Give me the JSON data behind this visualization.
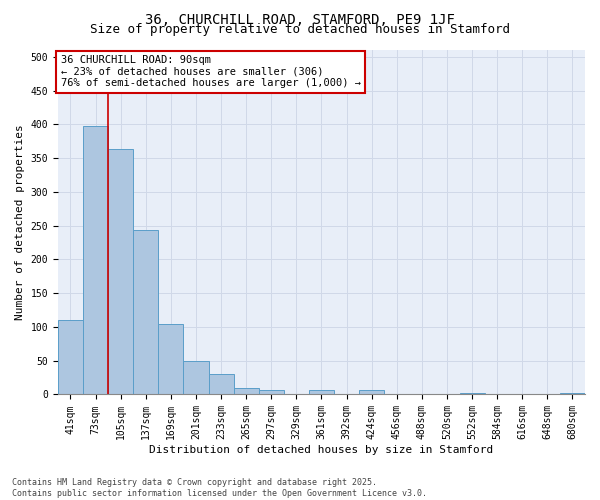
{
  "title_line1": "36, CHURCHILL ROAD, STAMFORD, PE9 1JF",
  "title_line2": "Size of property relative to detached houses in Stamford",
  "xlabel": "Distribution of detached houses by size in Stamford",
  "ylabel": "Number of detached properties",
  "categories": [
    "41sqm",
    "73sqm",
    "105sqm",
    "137sqm",
    "169sqm",
    "201sqm",
    "233sqm",
    "265sqm",
    "297sqm",
    "329sqm",
    "361sqm",
    "392sqm",
    "424sqm",
    "456sqm",
    "488sqm",
    "520sqm",
    "552sqm",
    "584sqm",
    "616sqm",
    "648sqm",
    "680sqm"
  ],
  "values": [
    110,
    397,
    363,
    243,
    105,
    49,
    30,
    10,
    7,
    0,
    6,
    0,
    7,
    0,
    0,
    0,
    2,
    0,
    1,
    0,
    2
  ],
  "bar_color": "#adc6e0",
  "bar_edge_color": "#5a9ec9",
  "vline_x": 1.5,
  "vline_color": "#cc0000",
  "annotation_text": "36 CHURCHILL ROAD: 90sqm\n← 23% of detached houses are smaller (306)\n76% of semi-detached houses are larger (1,000) →",
  "annotation_box_color": "#ffffff",
  "annotation_box_edge": "#cc0000",
  "ylim": [
    0,
    510
  ],
  "yticks": [
    0,
    50,
    100,
    150,
    200,
    250,
    300,
    350,
    400,
    450,
    500
  ],
  "grid_color": "#d0d8e8",
  "background_color": "#e8eef8",
  "footer_line1": "Contains HM Land Registry data © Crown copyright and database right 2025.",
  "footer_line2": "Contains public sector information licensed under the Open Government Licence v3.0.",
  "title_fontsize": 10,
  "subtitle_fontsize": 9,
  "axis_label_fontsize": 8,
  "tick_fontsize": 7,
  "annotation_fontsize": 7.5,
  "footer_fontsize": 6
}
